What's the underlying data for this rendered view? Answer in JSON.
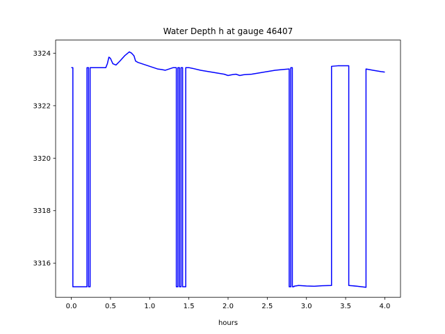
{
  "chart_data": {
    "type": "line",
    "title": "Water Depth h at gauge 46407",
    "xlabel": "hours",
    "ylabel": "",
    "xlim": [
      -0.2,
      4.2
    ],
    "ylim": [
      3314.7,
      3324.5
    ],
    "xticks": [
      0.0,
      0.5,
      1.0,
      1.5,
      2.0,
      2.5,
      3.0,
      3.5,
      4.0
    ],
    "xtick_labels": [
      "0.0",
      "0.5",
      "1.0",
      "1.5",
      "2.0",
      "2.5",
      "3.0",
      "3.5",
      "4.0"
    ],
    "yticks": [
      3316,
      3318,
      3320,
      3322,
      3324
    ],
    "ytick_labels": [
      "3316",
      "3318",
      "3320",
      "3322",
      "3324"
    ],
    "grid": false,
    "series": [
      {
        "color": "#0000ff",
        "x": [
          0.0,
          0.02,
          0.02,
          0.2,
          0.2,
          0.22,
          0.22,
          0.24,
          0.24,
          0.26,
          0.26,
          0.44,
          0.46,
          0.48,
          0.5,
          0.53,
          0.57,
          0.62,
          0.68,
          0.74,
          0.77,
          0.8,
          0.82,
          0.85,
          0.9,
          0.95,
          1.0,
          1.05,
          1.1,
          1.15,
          1.2,
          1.25,
          1.3,
          1.34,
          1.34,
          1.36,
          1.36,
          1.38,
          1.38,
          1.4,
          1.4,
          1.42,
          1.42,
          1.46,
          1.46,
          1.47,
          1.47,
          1.5,
          1.55,
          1.65,
          1.75,
          1.85,
          1.95,
          2.0,
          2.05,
          2.1,
          2.15,
          2.2,
          2.3,
          2.4,
          2.5,
          2.6,
          2.7,
          2.78,
          2.78,
          2.8,
          2.8,
          2.82,
          2.82,
          2.84,
          2.84,
          2.9,
          3.0,
          3.1,
          3.2,
          3.32,
          3.32,
          3.4,
          3.5,
          3.54,
          3.54,
          3.65,
          3.76,
          3.76,
          3.85,
          3.95,
          4.0
        ],
        "y": [
          3323.45,
          3323.45,
          3315.1,
          3315.1,
          3323.45,
          3323.45,
          3315.1,
          3315.1,
          3323.45,
          3323.45,
          3323.45,
          3323.45,
          3323.6,
          3323.85,
          3323.8,
          3323.6,
          3323.55,
          3323.7,
          3323.9,
          3324.05,
          3324.0,
          3323.9,
          3323.7,
          3323.65,
          3323.6,
          3323.55,
          3323.5,
          3323.45,
          3323.4,
          3323.38,
          3323.35,
          3323.4,
          3323.45,
          3323.45,
          3315.1,
          3315.1,
          3323.45,
          3323.45,
          3315.1,
          3315.1,
          3323.45,
          3323.45,
          3315.1,
          3315.1,
          3323.45,
          3323.45,
          3323.45,
          3323.45,
          3323.42,
          3323.35,
          3323.3,
          3323.25,
          3323.2,
          3323.15,
          3323.18,
          3323.2,
          3323.15,
          3323.18,
          3323.2,
          3323.25,
          3323.3,
          3323.35,
          3323.38,
          3323.4,
          3315.1,
          3315.1,
          3323.45,
          3323.45,
          3315.1,
          3315.1,
          3315.12,
          3315.15,
          3315.13,
          3315.12,
          3315.14,
          3315.15,
          3323.5,
          3323.52,
          3323.52,
          3323.52,
          3315.15,
          3315.12,
          3315.08,
          3323.4,
          3323.35,
          3323.3,
          3323.28
        ]
      }
    ]
  }
}
